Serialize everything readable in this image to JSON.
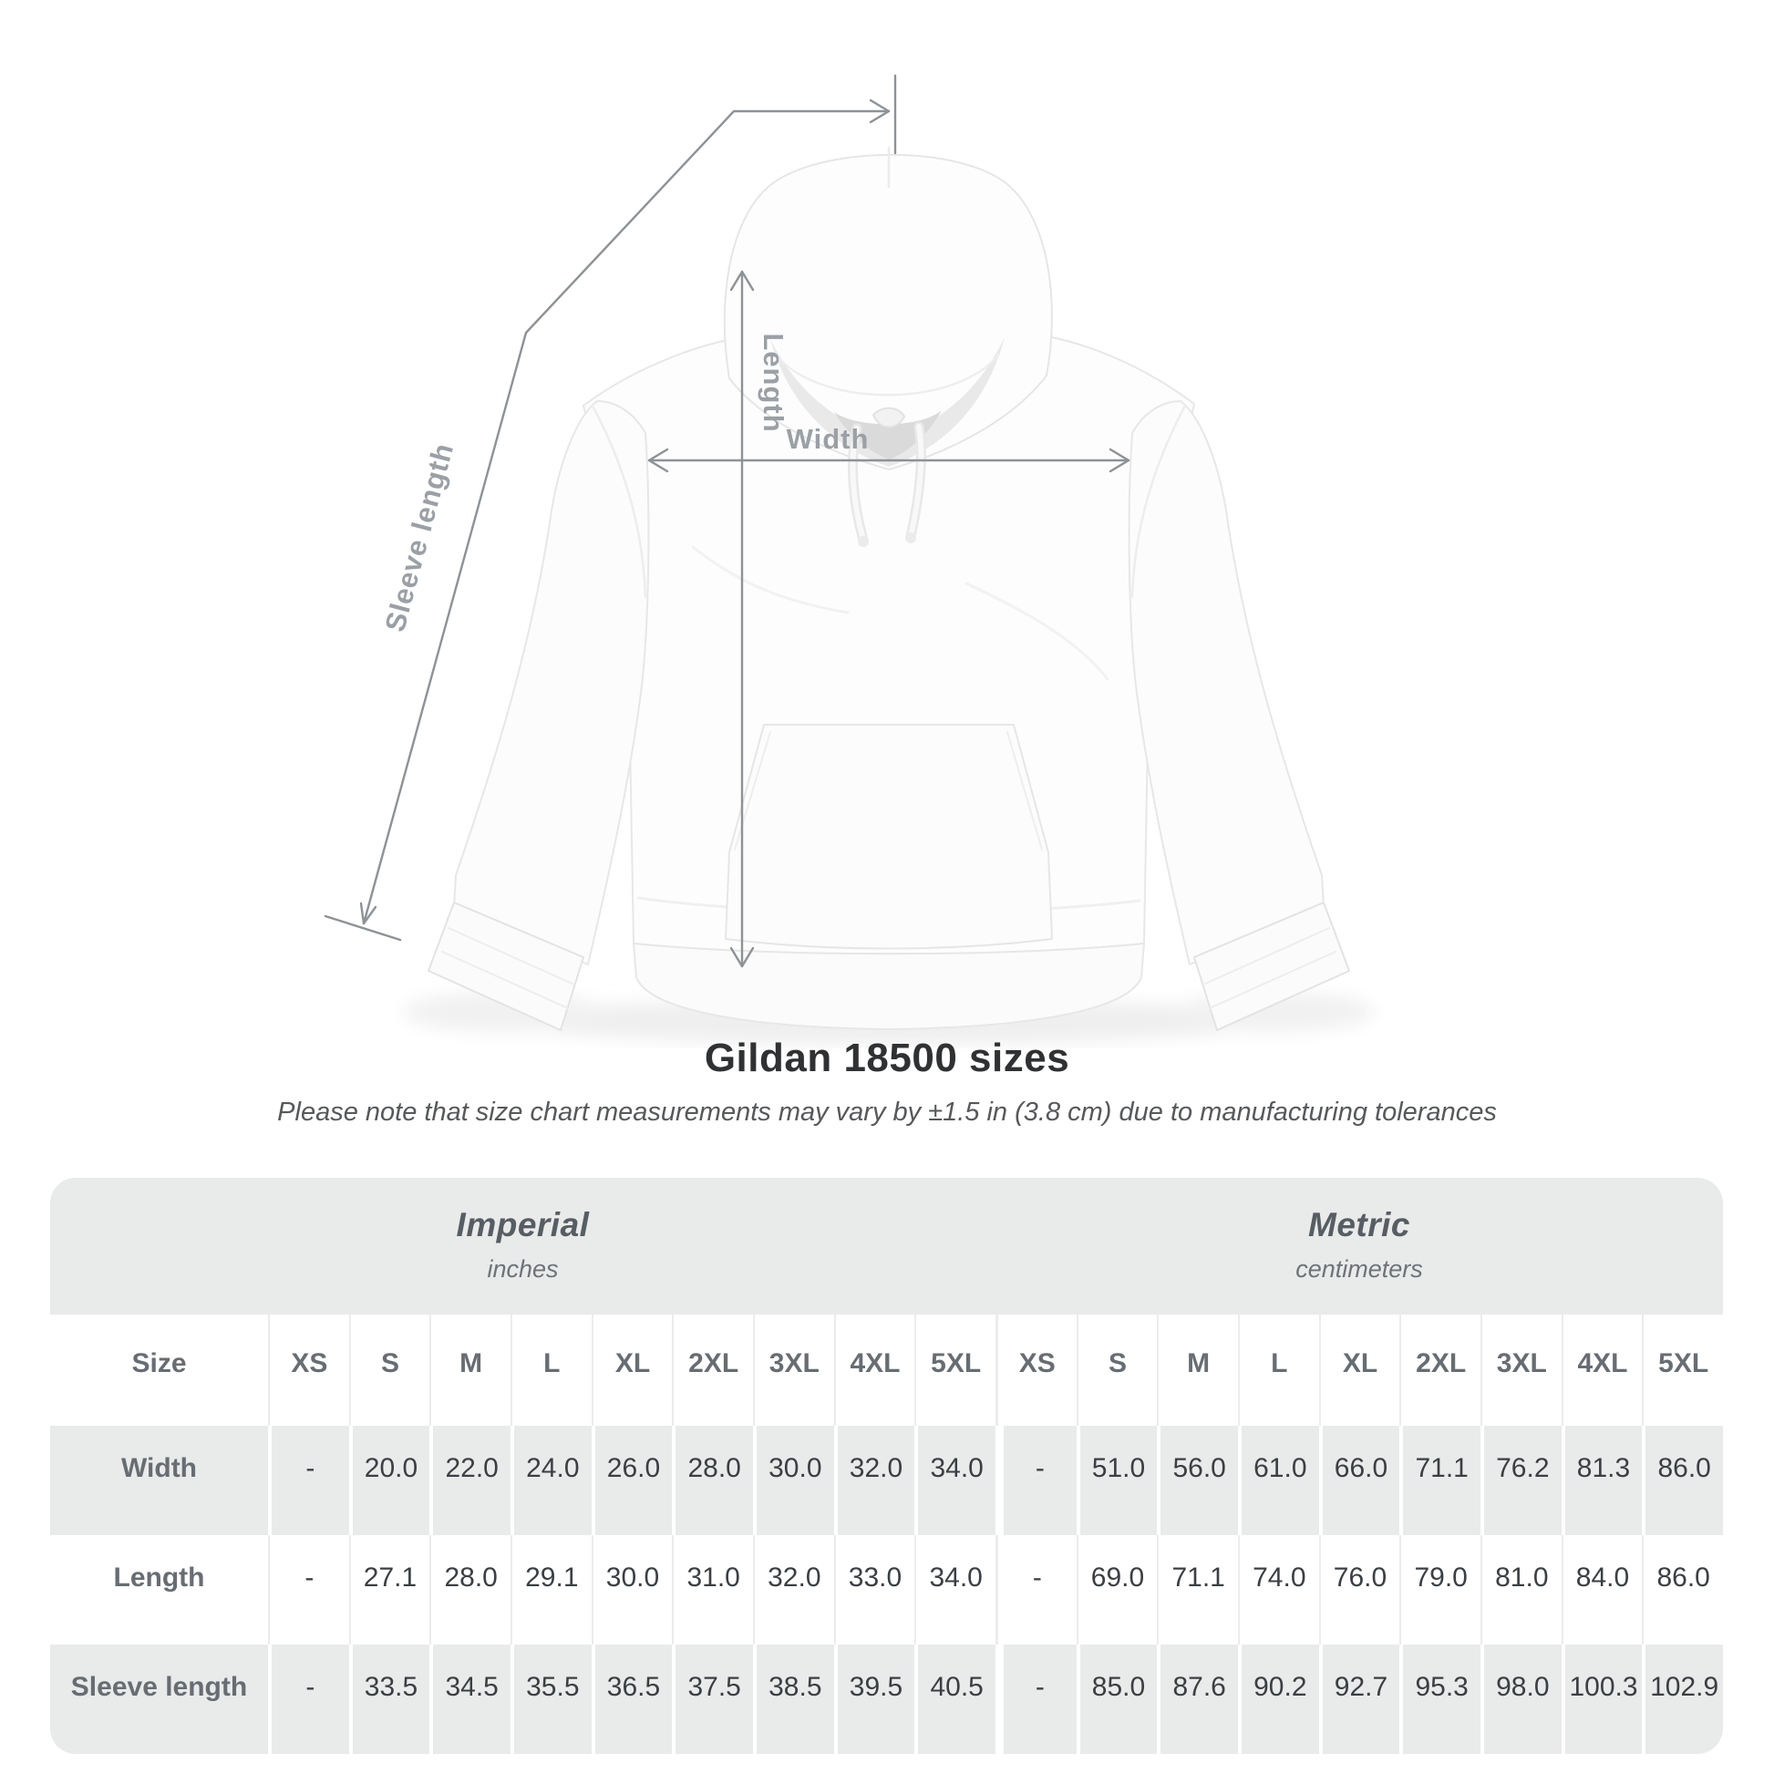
{
  "diagram": {
    "length_label": "Length",
    "width_label": "Width",
    "sleeve_label": "Sleeve length"
  },
  "title": "Gildan 18500 sizes",
  "subtitle": "Please note that size chart measurements may vary by ±1.5 in (3.8 cm) due to manufacturing tolerances",
  "table": {
    "size_header": "Size",
    "groups": [
      {
        "label": "Imperial",
        "sublabel": "inches"
      },
      {
        "label": "Metric",
        "sublabel": "centimeters"
      }
    ],
    "sizes": [
      "XS",
      "S",
      "M",
      "L",
      "XL",
      "2XL",
      "3XL",
      "4XL",
      "5XL"
    ],
    "rows": [
      {
        "label": "Width",
        "imperial": [
          "-",
          "20.0",
          "22.0",
          "24.0",
          "26.0",
          "28.0",
          "30.0",
          "32.0",
          "34.0"
        ],
        "metric": [
          "-",
          "51.0",
          "56.0",
          "61.0",
          "66.0",
          "71.1",
          "76.2",
          "81.3",
          "86.0"
        ]
      },
      {
        "label": "Length",
        "imperial": [
          "-",
          "27.1",
          "28.0",
          "29.1",
          "30.0",
          "31.0",
          "32.0",
          "33.0",
          "34.0"
        ],
        "metric": [
          "-",
          "69.0",
          "71.1",
          "74.0",
          "76.0",
          "79.0",
          "81.0",
          "84.0",
          "86.0"
        ]
      },
      {
        "label": "Sleeve length",
        "imperial": [
          "-",
          "33.5",
          "34.5",
          "35.5",
          "36.5",
          "37.5",
          "38.5",
          "39.5",
          "40.5"
        ],
        "metric": [
          "-",
          "85.0",
          "87.6",
          "90.2",
          "92.7",
          "95.3",
          "98.0",
          "100.3",
          "102.9"
        ]
      }
    ]
  },
  "chart_data": {
    "type": "table",
    "title": "Gildan 18500 sizes",
    "columns": [
      "XS",
      "S",
      "M",
      "L",
      "XL",
      "2XL",
      "3XL",
      "4XL",
      "5XL"
    ],
    "rows_imperial_inches": {
      "Width": [
        "-",
        20.0,
        22.0,
        24.0,
        26.0,
        28.0,
        30.0,
        32.0,
        34.0
      ],
      "Length": [
        "-",
        27.1,
        28.0,
        29.1,
        30.0,
        31.0,
        32.0,
        33.0,
        34.0
      ],
      "Sleeve length": [
        "-",
        33.5,
        34.5,
        35.5,
        36.5,
        37.5,
        38.5,
        39.5,
        40.5
      ]
    },
    "rows_metric_centimeters": {
      "Width": [
        "-",
        51.0,
        56.0,
        61.0,
        66.0,
        71.1,
        76.2,
        81.3,
        86.0
      ],
      "Length": [
        "-",
        69.0,
        71.1,
        74.0,
        76.0,
        79.0,
        81.0,
        84.0,
        86.0
      ],
      "Sleeve length": [
        "-",
        85.0,
        87.6,
        90.2,
        92.7,
        95.3,
        98.0,
        100.3,
        102.9
      ]
    }
  },
  "colors": {
    "annotation_line": "#8d9296",
    "annotation_label": "#9aa0a5",
    "band_background": "#e9eaea",
    "title_text": "#2f3133",
    "value_text": "#3b3f43",
    "header_text": "#676d72"
  }
}
